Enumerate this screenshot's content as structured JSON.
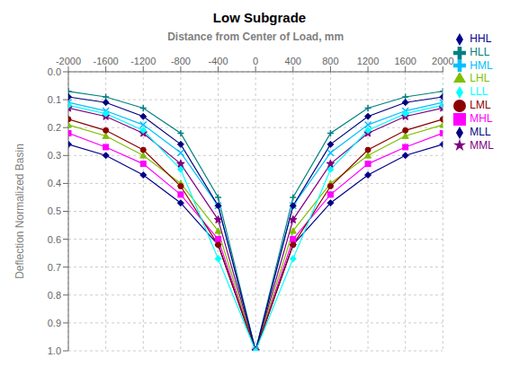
{
  "chart_data": {
    "type": "line",
    "title": "Low Subgrade",
    "x_label": "Distance from Center of Load, mm",
    "y_label": "Deflection Normalized Basin",
    "x": [
      -2000,
      -1600,
      -1200,
      -800,
      -400,
      0,
      400,
      800,
      1200,
      1600,
      2000
    ],
    "xlim": [
      -2000,
      2000
    ],
    "ylim": [
      1.0,
      0.0
    ],
    "xticks": [
      -2000,
      -1600,
      -1200,
      -800,
      -400,
      0,
      400,
      800,
      1200,
      1600,
      2000
    ],
    "yticks": [
      {
        "value": 0.0,
        "label": "0.0"
      },
      0.1,
      0.2,
      0.3,
      0.4,
      0.5,
      0.6,
      0.7,
      0.8,
      0.9,
      {
        "value": 1.0,
        "label": "1.0"
      }
    ],
    "grid": true,
    "legend": "right",
    "series": [
      {
        "name": "HHL",
        "color": "#00008B",
        "marker": "diamond",
        "values": [
          0.26,
          0.3,
          0.37,
          0.47,
          0.62,
          1.0,
          0.62,
          0.47,
          0.37,
          0.3,
          0.26
        ]
      },
      {
        "name": "MHL",
        "color": "#FF00FF",
        "marker": "square",
        "values": [
          0.22,
          0.27,
          0.33,
          0.44,
          0.6,
          1.0,
          0.6,
          0.44,
          0.33,
          0.27,
          0.22
        ]
      },
      {
        "name": "LHL",
        "color": "#7FBF00",
        "marker": "triangle",
        "values": [
          0.19,
          0.23,
          0.3,
          0.4,
          0.57,
          1.0,
          0.57,
          0.4,
          0.3,
          0.23,
          0.19
        ]
      },
      {
        "name": "HML",
        "color": "#00BFFF",
        "marker": "x",
        "values": [
          0.11,
          0.14,
          0.19,
          0.29,
          0.48,
          1.0,
          0.48,
          0.29,
          0.19,
          0.14,
          0.11
        ]
      },
      {
        "name": "MML",
        "color": "#800080",
        "marker": "star",
        "values": [
          0.13,
          0.16,
          0.22,
          0.33,
          0.53,
          1.0,
          0.53,
          0.33,
          0.22,
          0.16,
          0.13
        ]
      },
      {
        "name": "LML",
        "color": "#8B0000",
        "marker": "circle",
        "values": [
          0.17,
          0.21,
          0.28,
          0.41,
          0.62,
          1.0,
          0.62,
          0.41,
          0.28,
          0.21,
          0.17
        ]
      },
      {
        "name": "HLL",
        "color": "#008080",
        "marker": "plus",
        "values": [
          0.07,
          0.09,
          0.13,
          0.22,
          0.45,
          1.0,
          0.45,
          0.22,
          0.13,
          0.09,
          0.07
        ]
      },
      {
        "name": "MLL",
        "color": "#000080",
        "marker": "diamond",
        "values": [
          0.09,
          0.11,
          0.16,
          0.26,
          0.48,
          1.0,
          0.48,
          0.26,
          0.16,
          0.11,
          0.09
        ]
      },
      {
        "name": "LLL",
        "color": "#00FFFF",
        "marker": "diamond",
        "values": [
          0.12,
          0.15,
          0.21,
          0.35,
          0.67,
          1.0,
          0.67,
          0.35,
          0.21,
          0.15,
          0.12
        ]
      }
    ]
  }
}
